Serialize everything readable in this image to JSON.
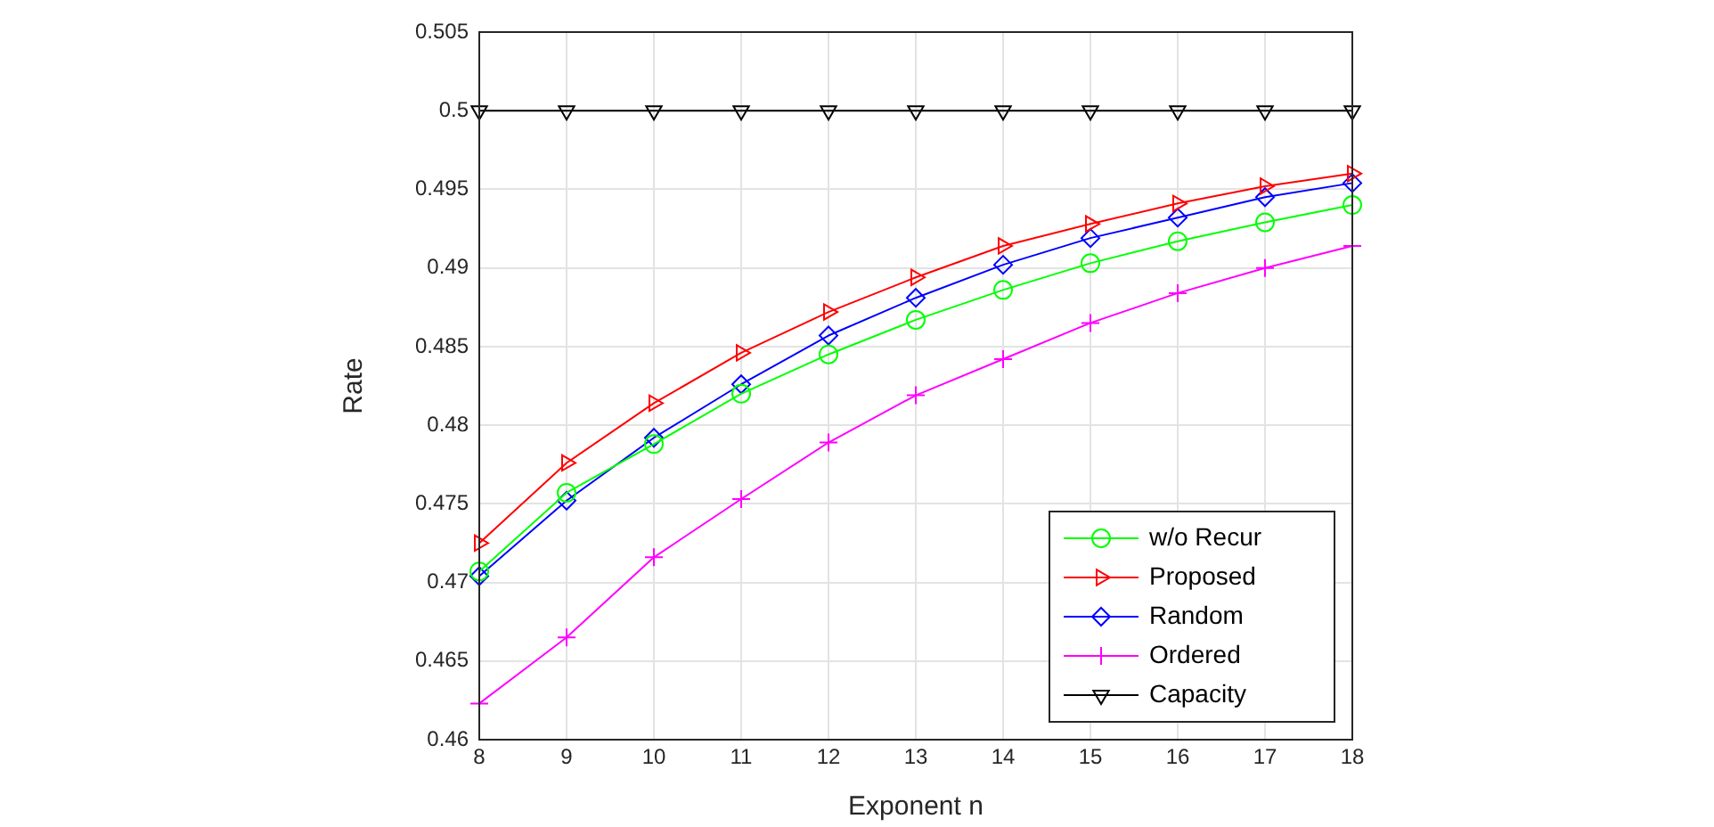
{
  "chart_data": {
    "type": "line",
    "xlabel": "Exponent n",
    "ylabel": "Rate",
    "x": [
      8,
      9,
      10,
      11,
      12,
      13,
      14,
      15,
      16,
      17,
      18
    ],
    "xlim": [
      8,
      18
    ],
    "xticks": [
      8,
      9,
      10,
      11,
      12,
      13,
      14,
      15,
      16,
      17,
      18
    ],
    "ylim": [
      0.46,
      0.505
    ],
    "yticks": [
      0.46,
      0.465,
      0.47,
      0.475,
      0.48,
      0.485,
      0.49,
      0.495,
      0.5,
      0.505
    ],
    "grid": true,
    "legend": "bottom right",
    "series": [
      {
        "name": "w/o Recur",
        "color": "#00ff00",
        "marker": "circle",
        "values": [
          0.4707,
          0.4757,
          0.4788,
          0.482,
          0.4845,
          0.4867,
          0.4886,
          0.4903,
          0.4917,
          0.4929,
          0.494
        ]
      },
      {
        "name": "Proposed",
        "color": "#ff0000",
        "marker": "triangle",
        "values": [
          0.4725,
          0.4776,
          0.4814,
          0.4846,
          0.4872,
          0.4894,
          0.4914,
          0.4928,
          0.4941,
          0.4952,
          0.496
        ]
      },
      {
        "name": "Random",
        "color": "#0000ff",
        "marker": "diamond",
        "values": [
          0.4704,
          0.4752,
          0.4792,
          0.4826,
          0.4857,
          0.4881,
          0.4902,
          0.4919,
          0.4932,
          0.4945,
          0.4954
        ]
      },
      {
        "name": "Ordered",
        "color": "#ff00ff",
        "marker": "cross",
        "values": [
          0.4623,
          0.4665,
          0.4716,
          0.4753,
          0.4789,
          0.4819,
          0.4842,
          0.4865,
          0.4884,
          0.49,
          0.4914
        ]
      },
      {
        "name": "Capacity",
        "color": "#000000",
        "marker": "triangle",
        "values": [
          0.5,
          0.5,
          0.5,
          0.5,
          0.5,
          0.5,
          0.5,
          0.5,
          0.5,
          0.5,
          0.5
        ]
      }
    ]
  }
}
